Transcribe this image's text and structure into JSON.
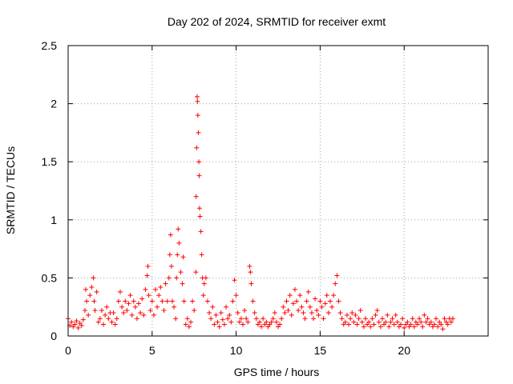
{
  "chart_data": {
    "type": "scatter",
    "title": "Day 202 of 2024, SRMTID for receiver exmt",
    "xlabel": "GPS time / hours",
    "ylabel": "SRMTID / TECUs",
    "xlim": [
      0,
      25
    ],
    "ylim": [
      0,
      2.5
    ],
    "xticks": [
      0,
      5,
      10,
      15,
      20
    ],
    "xtick_labels": [
      "0",
      "5",
      "10",
      "15",
      "20"
    ],
    "yticks": [
      0,
      0.5,
      1,
      1.5,
      2,
      2.5
    ],
    "ytick_labels": [
      "0",
      "0.5",
      "1",
      "1.5",
      "2",
      "2.5"
    ],
    "grid": true,
    "marker": "plus",
    "color": "#ff0000",
    "series": [
      {
        "name": "SRMTID",
        "points": [
          [
            0.0,
            0.15
          ],
          [
            0.1,
            0.09
          ],
          [
            0.2,
            0.12
          ],
          [
            0.3,
            0.08
          ],
          [
            0.4,
            0.1
          ],
          [
            0.5,
            0.13
          ],
          [
            0.6,
            0.07
          ],
          [
            0.7,
            0.11
          ],
          [
            0.8,
            0.09
          ],
          [
            0.9,
            0.14
          ],
          [
            1.0,
            0.22
          ],
          [
            1.05,
            0.4
          ],
          [
            1.1,
            0.3
          ],
          [
            1.2,
            0.18
          ],
          [
            1.3,
            0.35
          ],
          [
            1.4,
            0.42
          ],
          [
            1.5,
            0.5
          ],
          [
            1.55,
            0.3
          ],
          [
            1.6,
            0.22
          ],
          [
            1.7,
            0.38
          ],
          [
            1.8,
            0.12
          ],
          [
            1.9,
            0.15
          ],
          [
            2.0,
            0.22
          ],
          [
            2.1,
            0.1
          ],
          [
            2.2,
            0.18
          ],
          [
            2.3,
            0.25
          ],
          [
            2.4,
            0.15
          ],
          [
            2.5,
            0.2
          ],
          [
            2.6,
            0.12
          ],
          [
            2.7,
            0.2
          ],
          [
            2.8,
            0.1
          ],
          [
            2.9,
            0.15
          ],
          [
            3.0,
            0.3
          ],
          [
            3.1,
            0.38
          ],
          [
            3.2,
            0.25
          ],
          [
            3.3,
            0.2
          ],
          [
            3.4,
            0.3
          ],
          [
            3.5,
            0.22
          ],
          [
            3.6,
            0.28
          ],
          [
            3.7,
            0.35
          ],
          [
            3.8,
            0.18
          ],
          [
            3.9,
            0.3
          ],
          [
            4.0,
            0.25
          ],
          [
            4.1,
            0.15
          ],
          [
            4.2,
            0.28
          ],
          [
            4.3,
            0.2
          ],
          [
            4.4,
            0.32
          ],
          [
            4.5,
            0.18
          ],
          [
            4.6,
            0.4
          ],
          [
            4.7,
            0.52
          ],
          [
            4.75,
            0.6
          ],
          [
            4.8,
            0.35
          ],
          [
            4.9,
            0.22
          ],
          [
            5.0,
            0.3
          ],
          [
            5.1,
            0.18
          ],
          [
            5.2,
            0.4
          ],
          [
            5.3,
            0.25
          ],
          [
            5.4,
            0.35
          ],
          [
            5.5,
            0.42
          ],
          [
            5.6,
            0.3
          ],
          [
            5.7,
            0.22
          ],
          [
            5.8,
            0.45
          ],
          [
            5.9,
            0.3
          ],
          [
            6.0,
            0.5
          ],
          [
            6.05,
            0.7
          ],
          [
            6.1,
            0.87
          ],
          [
            6.15,
            0.6
          ],
          [
            6.2,
            0.3
          ],
          [
            6.3,
            0.25
          ],
          [
            6.4,
            0.15
          ],
          [
            6.45,
            0.5
          ],
          [
            6.5,
            0.7
          ],
          [
            6.55,
            0.92
          ],
          [
            6.6,
            0.8
          ],
          [
            6.7,
            0.55
          ],
          [
            6.8,
            0.45
          ],
          [
            6.85,
            0.68
          ],
          [
            6.9,
            0.3
          ],
          [
            7.0,
            0.1
          ],
          [
            7.1,
            0.15
          ],
          [
            7.2,
            0.08
          ],
          [
            7.3,
            0.12
          ],
          [
            7.4,
            0.3
          ],
          [
            7.5,
            0.22
          ],
          [
            7.6,
            0.55
          ],
          [
            7.62,
            1.2
          ],
          [
            7.65,
            1.62
          ],
          [
            7.68,
            2.06
          ],
          [
            7.7,
            2.02
          ],
          [
            7.72,
            1.9
          ],
          [
            7.75,
            1.75
          ],
          [
            7.78,
            1.5
          ],
          [
            7.8,
            1.38
          ],
          [
            7.82,
            1.1
          ],
          [
            7.85,
            1.03
          ],
          [
            7.9,
            0.9
          ],
          [
            7.95,
            0.7
          ],
          [
            8.0,
            0.5
          ],
          [
            8.05,
            0.35
          ],
          [
            8.1,
            0.45
          ],
          [
            8.2,
            0.5
          ],
          [
            8.3,
            0.3
          ],
          [
            8.4,
            0.2
          ],
          [
            8.5,
            0.15
          ],
          [
            8.6,
            0.25
          ],
          [
            8.7,
            0.1
          ],
          [
            8.8,
            0.18
          ],
          [
            8.9,
            0.12
          ],
          [
            9.0,
            0.08
          ],
          [
            9.1,
            0.2
          ],
          [
            9.2,
            0.14
          ],
          [
            9.3,
            0.1
          ],
          [
            9.4,
            0.25
          ],
          [
            9.5,
            0.15
          ],
          [
            9.6,
            0.18
          ],
          [
            9.7,
            0.12
          ],
          [
            9.8,
            0.3
          ],
          [
            9.9,
            0.48
          ],
          [
            10.0,
            0.35
          ],
          [
            10.1,
            0.2
          ],
          [
            10.2,
            0.12
          ],
          [
            10.3,
            0.15
          ],
          [
            10.4,
            0.1
          ],
          [
            10.5,
            0.22
          ],
          [
            10.6,
            0.15
          ],
          [
            10.7,
            0.12
          ],
          [
            10.8,
            0.6
          ],
          [
            10.85,
            0.55
          ],
          [
            10.9,
            0.45
          ],
          [
            11.0,
            0.3
          ],
          [
            11.1,
            0.2
          ],
          [
            11.2,
            0.15
          ],
          [
            11.3,
            0.1
          ],
          [
            11.4,
            0.12
          ],
          [
            11.5,
            0.08
          ],
          [
            11.6,
            0.15
          ],
          [
            11.7,
            0.1
          ],
          [
            11.8,
            0.12
          ],
          [
            11.9,
            0.08
          ],
          [
            12.0,
            0.1
          ],
          [
            12.1,
            0.12
          ],
          [
            12.2,
            0.15
          ],
          [
            12.3,
            0.2
          ],
          [
            12.4,
            0.12
          ],
          [
            12.5,
            0.08
          ],
          [
            12.6,
            0.1
          ],
          [
            12.7,
            0.15
          ],
          [
            12.8,
            0.25
          ],
          [
            12.9,
            0.2
          ],
          [
            13.0,
            0.3
          ],
          [
            13.1,
            0.22
          ],
          [
            13.2,
            0.35
          ],
          [
            13.3,
            0.18
          ],
          [
            13.4,
            0.28
          ],
          [
            13.5,
            0.4
          ],
          [
            13.6,
            0.3
          ],
          [
            13.7,
            0.22
          ],
          [
            13.8,
            0.35
          ],
          [
            13.9,
            0.25
          ],
          [
            14.0,
            0.2
          ],
          [
            14.1,
            0.15
          ],
          [
            14.2,
            0.3
          ],
          [
            14.3,
            0.38
          ],
          [
            14.4,
            0.25
          ],
          [
            14.5,
            0.2
          ],
          [
            14.6,
            0.15
          ],
          [
            14.7,
            0.32
          ],
          [
            14.8,
            0.22
          ],
          [
            14.9,
            0.18
          ],
          [
            15.0,
            0.3
          ],
          [
            15.1,
            0.25
          ],
          [
            15.2,
            0.15
          ],
          [
            15.3,
            0.28
          ],
          [
            15.4,
            0.35
          ],
          [
            15.5,
            0.2
          ],
          [
            15.6,
            0.3
          ],
          [
            15.7,
            0.25
          ],
          [
            15.8,
            0.35
          ],
          [
            15.9,
            0.45
          ],
          [
            16.0,
            0.52
          ],
          [
            16.1,
            0.3
          ],
          [
            16.2,
            0.2
          ],
          [
            16.3,
            0.15
          ],
          [
            16.4,
            0.1
          ],
          [
            16.5,
            0.12
          ],
          [
            16.6,
            0.18
          ],
          [
            16.7,
            0.1
          ],
          [
            16.8,
            0.15
          ],
          [
            16.9,
            0.2
          ],
          [
            17.0,
            0.12
          ],
          [
            17.1,
            0.18
          ],
          [
            17.2,
            0.1
          ],
          [
            17.3,
            0.15
          ],
          [
            17.4,
            0.22
          ],
          [
            17.5,
            0.12
          ],
          [
            17.6,
            0.08
          ],
          [
            17.7,
            0.15
          ],
          [
            17.8,
            0.1
          ],
          [
            17.9,
            0.12
          ],
          [
            18.0,
            0.08
          ],
          [
            18.1,
            0.15
          ],
          [
            18.2,
            0.1
          ],
          [
            18.3,
            0.18
          ],
          [
            18.4,
            0.22
          ],
          [
            18.5,
            0.12
          ],
          [
            18.6,
            0.08
          ],
          [
            18.7,
            0.15
          ],
          [
            18.8,
            0.1
          ],
          [
            18.9,
            0.12
          ],
          [
            19.0,
            0.18
          ],
          [
            19.1,
            0.08
          ],
          [
            19.2,
            0.12
          ],
          [
            19.3,
            0.15
          ],
          [
            19.4,
            0.1
          ],
          [
            19.5,
            0.18
          ],
          [
            19.6,
            0.12
          ],
          [
            19.7,
            0.08
          ],
          [
            19.8,
            0.1
          ],
          [
            19.9,
            0.15
          ],
          [
            20.0,
            0.07
          ],
          [
            20.1,
            0.1
          ],
          [
            20.2,
            0.12
          ],
          [
            20.3,
            0.08
          ],
          [
            20.4,
            0.1
          ],
          [
            20.5,
            0.15
          ],
          [
            20.6,
            0.08
          ],
          [
            20.7,
            0.12
          ],
          [
            20.8,
            0.1
          ],
          [
            20.9,
            0.15
          ],
          [
            21.0,
            0.12
          ],
          [
            21.1,
            0.08
          ],
          [
            21.2,
            0.18
          ],
          [
            21.3,
            0.12
          ],
          [
            21.4,
            0.15
          ],
          [
            21.5,
            0.1
          ],
          [
            21.6,
            0.12
          ],
          [
            21.7,
            0.08
          ],
          [
            21.8,
            0.1
          ],
          [
            21.9,
            0.15
          ],
          [
            22.0,
            0.08
          ],
          [
            22.1,
            0.12
          ],
          [
            22.2,
            0.1
          ],
          [
            22.3,
            0.06
          ],
          [
            22.4,
            0.15
          ],
          [
            22.5,
            0.12
          ],
          [
            22.6,
            0.1
          ],
          [
            22.7,
            0.15
          ],
          [
            22.8,
            0.12
          ],
          [
            22.9,
            0.15
          ]
        ]
      }
    ]
  }
}
